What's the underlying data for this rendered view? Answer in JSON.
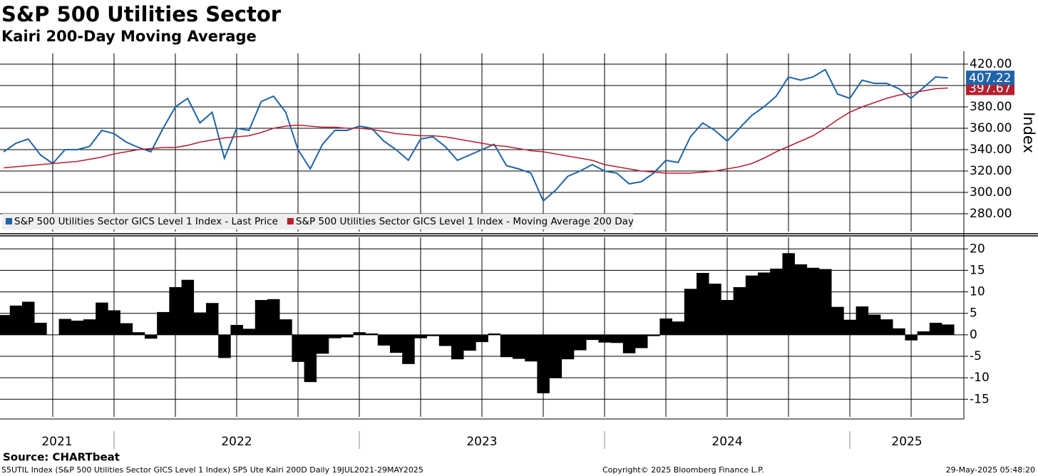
{
  "chart_data": [
    {
      "type": "line",
      "title": "S&P 500 Utilities Sector",
      "subtitle": "Kairi 200-Day Moving Average",
      "y_label": "Index",
      "x": [
        2021.55,
        2021.6,
        2021.65,
        2021.7,
        2021.75,
        2021.8,
        2021.85,
        2021.9,
        2021.95,
        2022.0,
        2022.05,
        2022.1,
        2022.15,
        2022.2,
        2022.25,
        2022.3,
        2022.35,
        2022.4,
        2022.45,
        2022.5,
        2022.55,
        2022.6,
        2022.65,
        2022.7,
        2022.75,
        2022.8,
        2022.85,
        2022.9,
        2022.95,
        2023.0,
        2023.05,
        2023.1,
        2023.15,
        2023.2,
        2023.25,
        2023.3,
        2023.35,
        2023.4,
        2023.45,
        2023.5,
        2023.55,
        2023.6,
        2023.65,
        2023.7,
        2023.75,
        2023.8,
        2023.85,
        2023.9,
        2023.95,
        2024.0,
        2024.05,
        2024.1,
        2024.15,
        2024.2,
        2024.25,
        2024.3,
        2024.35,
        2024.4,
        2024.45,
        2024.5,
        2024.55,
        2024.6,
        2024.65,
        2024.7,
        2024.75,
        2024.8,
        2024.85,
        2024.9,
        2024.95,
        2025.0,
        2025.05,
        2025.1,
        2025.15,
        2025.2,
        2025.25,
        2025.3,
        2025.35,
        2025.4
      ],
      "series": [
        {
          "name": "S&P 500 Utilities Sector GICS Level 1 Index - Last Price",
          "color": "#1f64a8",
          "end_label": "407.22",
          "values": [
            338,
            346,
            350,
            335,
            327,
            340,
            340,
            343,
            358,
            355,
            347,
            342,
            338,
            360,
            380,
            388,
            365,
            375,
            332,
            360,
            358,
            385,
            390,
            375,
            340,
            322,
            345,
            358,
            358,
            362,
            360,
            348,
            340,
            330,
            350,
            352,
            343,
            330,
            335,
            340,
            345,
            325,
            322,
            318,
            292,
            302,
            315,
            320,
            326,
            320,
            318,
            308,
            310,
            318,
            330,
            328,
            352,
            365,
            358,
            348,
            360,
            372,
            380,
            390,
            408,
            405,
            408,
            415,
            392,
            388,
            405,
            402,
            402,
            397,
            388,
            398,
            408,
            407.22
          ]
        },
        {
          "name": "S&P 500 Utilities Sector GICS Level 1 Index - Moving Average 200 Day",
          "color": "#b5202e",
          "end_label": "397.67",
          "values": [
            323,
            324,
            325,
            326,
            327,
            328,
            329,
            331,
            333,
            336,
            338,
            340,
            341,
            342,
            342,
            344,
            347,
            349,
            351,
            352,
            353,
            356,
            360,
            362,
            363,
            362,
            361,
            361,
            360,
            360,
            359,
            357,
            355,
            354,
            353,
            353,
            352,
            350,
            348,
            346,
            344,
            343,
            341,
            339,
            338,
            336,
            334,
            332,
            330,
            326,
            324,
            322,
            320,
            319,
            318,
            318,
            318,
            319,
            320,
            322,
            324,
            327,
            332,
            338,
            343,
            348,
            353,
            360,
            368,
            375,
            380,
            384,
            388,
            391,
            393,
            395,
            397,
            397.67
          ]
        }
      ],
      "xlim": [
        2021.535,
        2025.465
      ],
      "xticks": [
        2021.75,
        2022.0,
        2022.25,
        2022.5,
        2022.75,
        2023.0,
        2023.25,
        2023.5,
        2023.75,
        2024.0,
        2024.25,
        2024.5,
        2024.75,
        2025.0,
        2025.25
      ],
      "ylim": [
        263.3,
        430
      ],
      "yticks": [
        {
          "value": 280,
          "label": "280.00"
        },
        {
          "value": 300,
          "label": "300.00"
        },
        {
          "value": 320,
          "label": "320.00"
        },
        {
          "value": 340,
          "label": "340.00"
        },
        {
          "value": 360,
          "label": "360.00"
        },
        {
          "value": 380,
          "label": "380.00"
        },
        {
          "value": 400,
          "label": "400.00"
        },
        {
          "value": 420,
          "label": "420.00"
        }
      ],
      "grid": true,
      "legend": "bottom-left"
    },
    {
      "type": "bar",
      "color": "#000000",
      "x": [
        2021.55,
        2021.6,
        2021.65,
        2021.7,
        2021.75,
        2021.8,
        2021.85,
        2021.9,
        2021.95,
        2022.0,
        2022.05,
        2022.1,
        2022.15,
        2022.2,
        2022.25,
        2022.3,
        2022.35,
        2022.4,
        2022.45,
        2022.5,
        2022.55,
        2022.6,
        2022.65,
        2022.7,
        2022.75,
        2022.8,
        2022.85,
        2022.9,
        2022.95,
        2023.0,
        2023.05,
        2023.1,
        2023.15,
        2023.2,
        2023.25,
        2023.3,
        2023.35,
        2023.4,
        2023.45,
        2023.5,
        2023.55,
        2023.6,
        2023.65,
        2023.7,
        2023.75,
        2023.8,
        2023.85,
        2023.9,
        2023.95,
        2024.0,
        2024.05,
        2024.1,
        2024.15,
        2024.2,
        2024.25,
        2024.3,
        2024.35,
        2024.4,
        2024.45,
        2024.5,
        2024.55,
        2024.6,
        2024.65,
        2024.7,
        2024.75,
        2024.8,
        2024.85,
        2024.9,
        2024.95,
        2025.0,
        2025.05,
        2025.1,
        2025.15,
        2025.2,
        2025.25,
        2025.3,
        2025.35,
        2025.4
      ],
      "values": [
        4.6,
        6.8,
        7.7,
        2.8,
        0,
        3.7,
        3.3,
        3.6,
        7.5,
        5.7,
        2.7,
        0.6,
        -0.9,
        5.3,
        11.1,
        12.8,
        5.2,
        7.4,
        -5.4,
        2.3,
        1.4,
        8.1,
        8.3,
        3.6,
        -6.3,
        -11.0,
        -4.4,
        -0.8,
        -0.6,
        0.6,
        0.3,
        -2.5,
        -4.2,
        -6.8,
        -0.8,
        -0.3,
        -2.6,
        -5.7,
        -3.7,
        -1.7,
        0.3,
        -5.2,
        -5.6,
        -6.2,
        -13.6,
        -10.1,
        -5.7,
        -3.6,
        -1.2,
        -1.8,
        -1.9,
        -4.3,
        -3.1,
        -0.3,
        3.8,
        3.1,
        10.7,
        14.4,
        11.9,
        8.1,
        11.1,
        13.8,
        14.5,
        15.4,
        19.0,
        16.4,
        15.6,
        15.3,
        6.5,
        3.5,
        6.6,
        4.7,
        3.6,
        1.5,
        -1.3,
        0.8,
        2.8,
        2.4
      ],
      "xlim": [
        2021.535,
        2025.465
      ],
      "xticks": [
        2021.75,
        2022.0,
        2022.25,
        2022.5,
        2022.75,
        2023.0,
        2023.25,
        2023.5,
        2023.75,
        2024.0,
        2024.25,
        2024.5,
        2024.75,
        2025.0,
        2025.25
      ],
      "year_labels": [
        2021,
        2022,
        2023,
        2024,
        2025
      ],
      "ylim": [
        -19.1,
        22.7
      ],
      "yticks": [
        -15,
        -10,
        -5,
        0,
        5,
        10,
        15,
        20
      ],
      "grid": true
    }
  ],
  "footer": {
    "source": "Source: CHARTbeat",
    "description": "S5UTIL Index (S&P 500 Utilities Sector GICS Level 1 Index) SP5 Ute Kairi 200D  Daily 19JUL2021-29MAY2025",
    "copyright": "Copyright© 2025 Bloomberg Finance L.P.",
    "timestamp": "29-May-2025 05:48:20"
  }
}
